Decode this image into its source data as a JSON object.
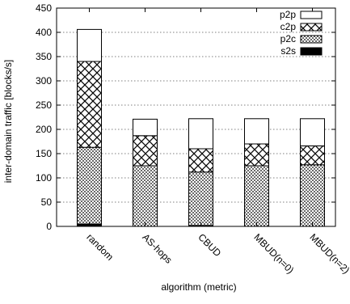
{
  "chart_data": {
    "type": "bar",
    "stacked": true,
    "xlabel": "algorithm (metric)",
    "ylabel": "inter-domain traffic [blocks/s]",
    "ylim": [
      0,
      450
    ],
    "yticks": [
      0,
      50,
      100,
      150,
      200,
      250,
      300,
      350,
      400,
      450
    ],
    "grid": true,
    "legend_position": "top-right",
    "categories": [
      "random",
      "AS-hops",
      "CBUD",
      "MBUD(n=0)",
      "MBUD(n=2)"
    ],
    "series": [
      {
        "name": "s2s",
        "pattern": "solid-black",
        "values": [
          5,
          0,
          2,
          0,
          0
        ]
      },
      {
        "name": "p2c",
        "pattern": "dense-dots",
        "values": [
          158,
          125,
          110,
          125,
          127
        ]
      },
      {
        "name": "c2p",
        "pattern": "crosshatch",
        "values": [
          177,
          62,
          48,
          45,
          39
        ]
      },
      {
        "name": "p2p",
        "pattern": "white",
        "values": [
          66,
          34,
          62,
          52,
          56
        ]
      }
    ]
  }
}
